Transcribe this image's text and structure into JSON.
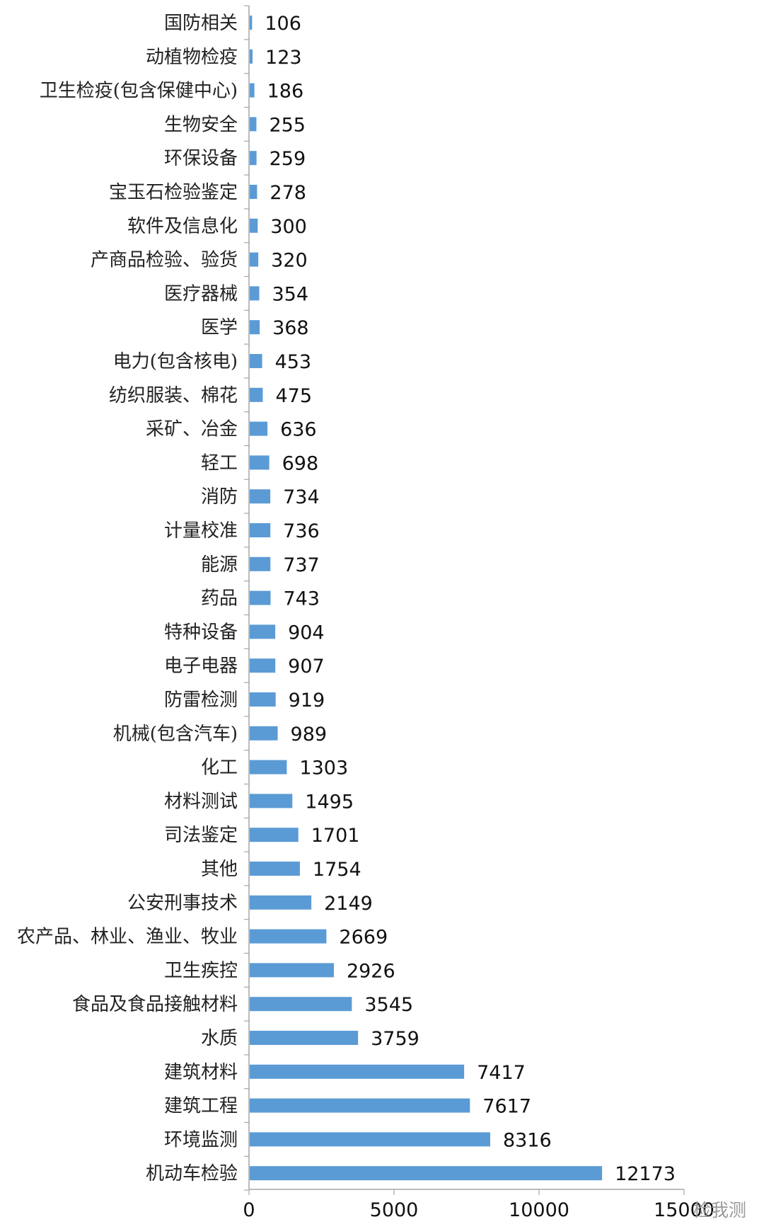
{
  "chart_data": {
    "type": "bar",
    "orientation": "horizontal",
    "categories": [
      "国防相关",
      "动植物检疫",
      "卫生检疫(包含保健中心)",
      "生物安全",
      "环保设备",
      "宝玉石检验鉴定",
      "软件及信息化",
      "产商品检验、验货",
      "医疗器械",
      "医学",
      "电力(包含核电)",
      "纺织服装、棉花",
      "采矿、冶金",
      "轻工",
      "消防",
      "计量校准",
      "能源",
      "药品",
      "特种设备",
      "电子电器",
      "防雷检测",
      "机械(包含汽车)",
      "化工",
      "材料测试",
      "司法鉴定",
      "其他",
      "公安刑事技术",
      "农产品、林业、渔业、牧业",
      "卫生疾控",
      "食品及食品接触材料",
      "水质",
      "建筑材料",
      "建筑工程",
      "环境监测",
      "机动车检验"
    ],
    "values": [
      106,
      123,
      186,
      255,
      259,
      278,
      300,
      320,
      354,
      368,
      453,
      475,
      636,
      698,
      734,
      736,
      737,
      743,
      904,
      907,
      919,
      989,
      1303,
      1495,
      1701,
      1754,
      2149,
      2669,
      2926,
      3545,
      3759,
      7417,
      7617,
      8316,
      12173
    ],
    "xlim": [
      0,
      15000
    ],
    "xticks": [
      "0",
      "5000",
      "10000",
      "15000"
    ],
    "title": "",
    "xlabel": "",
    "ylabel": "",
    "bar_color": "#5b9bd5",
    "axis_color": "#a6a6a6",
    "data_labels": true,
    "legend": "none",
    "grid": false
  },
  "watermark": "检我测"
}
